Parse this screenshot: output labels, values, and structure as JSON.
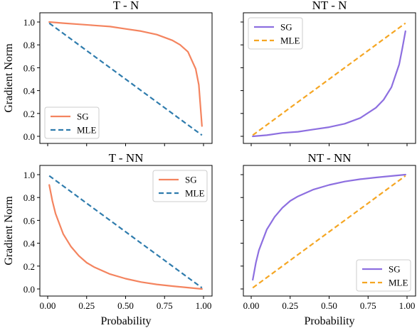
{
  "chart_data": [
    {
      "type": "line",
      "title": "T - N",
      "xlabel": "",
      "ylabel": "Gradient Norm",
      "xlim": [
        0,
        1
      ],
      "ylim": [
        0,
        1
      ],
      "legend_position": "lower-left",
      "series": [
        {
          "name": "SG",
          "color": "#f4845f",
          "style": "solid",
          "x": [
            0.01,
            0.1,
            0.2,
            0.3,
            0.4,
            0.5,
            0.6,
            0.7,
            0.8,
            0.85,
            0.9,
            0.95,
            0.97,
            0.99
          ],
          "y": [
            1.0,
            0.99,
            0.98,
            0.97,
            0.96,
            0.94,
            0.92,
            0.89,
            0.84,
            0.8,
            0.74,
            0.59,
            0.45,
            0.09
          ]
        },
        {
          "name": "MLE",
          "color": "#2f7cad",
          "style": "dashed",
          "x": [
            0.01,
            0.99
          ],
          "y": [
            0.99,
            0.01
          ]
        }
      ]
    },
    {
      "type": "line",
      "title": "NT - N",
      "xlabel": "",
      "ylabel": "",
      "xlim": [
        0,
        1
      ],
      "ylim": [
        0,
        1
      ],
      "legend_position": "upper-left",
      "series": [
        {
          "name": "SG",
          "color": "#8d6fe0",
          "style": "solid",
          "x": [
            0.01,
            0.1,
            0.2,
            0.3,
            0.4,
            0.5,
            0.6,
            0.7,
            0.8,
            0.85,
            0.9,
            0.95,
            0.97,
            0.99
          ],
          "y": [
            0.0,
            0.01,
            0.03,
            0.04,
            0.06,
            0.08,
            0.11,
            0.16,
            0.25,
            0.32,
            0.43,
            0.63,
            0.77,
            0.92
          ]
        },
        {
          "name": "MLE",
          "color": "#f5a623",
          "style": "dashed",
          "x": [
            0.01,
            0.99
          ],
          "y": [
            0.01,
            0.99
          ]
        }
      ]
    },
    {
      "type": "line",
      "title": "T - NN",
      "xlabel": "Probability",
      "ylabel": "Gradient Norm",
      "xlim": [
        0,
        1
      ],
      "ylim": [
        0,
        1
      ],
      "legend_position": "upper-right",
      "series": [
        {
          "name": "SG",
          "color": "#f4845f",
          "style": "solid",
          "x": [
            0.01,
            0.03,
            0.05,
            0.1,
            0.15,
            0.2,
            0.25,
            0.3,
            0.4,
            0.5,
            0.6,
            0.7,
            0.8,
            0.9,
            0.99
          ],
          "y": [
            0.91,
            0.77,
            0.66,
            0.48,
            0.37,
            0.29,
            0.23,
            0.19,
            0.13,
            0.09,
            0.06,
            0.04,
            0.025,
            0.012,
            0.0
          ]
        },
        {
          "name": "MLE",
          "color": "#2f7cad",
          "style": "dashed",
          "x": [
            0.01,
            0.99
          ],
          "y": [
            0.99,
            0.01
          ]
        }
      ]
    },
    {
      "type": "line",
      "title": "NT - NN",
      "xlabel": "Probability",
      "ylabel": "",
      "xlim": [
        0,
        1
      ],
      "ylim": [
        0,
        1
      ],
      "legend_position": "lower-right",
      "series": [
        {
          "name": "SG",
          "color": "#8d6fe0",
          "style": "solid",
          "x": [
            0.01,
            0.03,
            0.05,
            0.1,
            0.15,
            0.2,
            0.25,
            0.3,
            0.4,
            0.5,
            0.6,
            0.7,
            0.8,
            0.9,
            0.99
          ],
          "y": [
            0.08,
            0.23,
            0.34,
            0.52,
            0.63,
            0.71,
            0.77,
            0.81,
            0.87,
            0.91,
            0.94,
            0.96,
            0.975,
            0.988,
            1.0
          ]
        },
        {
          "name": "MLE",
          "color": "#f5a623",
          "style": "dashed",
          "x": [
            0.01,
            0.99
          ],
          "y": [
            0.01,
            0.99
          ]
        }
      ]
    }
  ],
  "axes": {
    "x_ticks": [
      "0.00",
      "0.25",
      "0.50",
      "0.75",
      "1.00"
    ],
    "y_ticks": [
      "0.0",
      "0.2",
      "0.4",
      "0.6",
      "0.8",
      "1.0"
    ]
  }
}
